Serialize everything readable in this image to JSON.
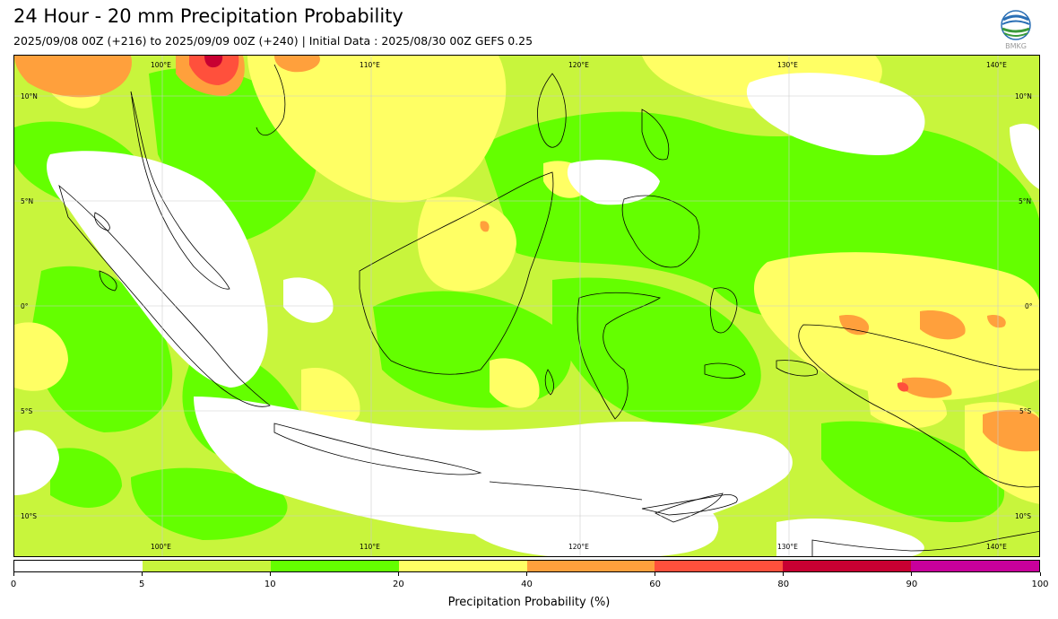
{
  "header": {
    "title": "24 Hour - 20 mm Precipitation Probability",
    "subtitle": "2025/09/08 00Z (+216) to 2025/09/09 00Z (+240) | Initial Data : 2025/08/30 00Z GEFS 0.25"
  },
  "logo": {
    "icon": "bmkg-logo-icon",
    "text": "BMKG"
  },
  "map": {
    "gridlines": {
      "longitudes_top": [
        "100°E",
        "110°E",
        "120°E",
        "130°E",
        "140°E"
      ],
      "longitudes_bottom": [
        "100°E",
        "110°E",
        "120°E",
        "130°E",
        "140°E"
      ],
      "latitudes_left": [
        "10°N",
        "5°N",
        "0°",
        "5°S",
        "10°S"
      ],
      "latitudes_right": [
        "10°N",
        "5°N",
        "0°",
        "5°S",
        "10°S"
      ]
    },
    "region": "Indonesia, approx 93°E–142°E, 12°N–12°S"
  },
  "colorbar": {
    "label": "Precipitation Probability (%)",
    "ticks": [
      "0",
      "5",
      "10",
      "20",
      "40",
      "60",
      "80",
      "90",
      "100"
    ],
    "colors": [
      "#ffffff",
      "#c8f53c",
      "#64ff00",
      "#ffff64",
      "#ffa03c",
      "#ff503c",
      "#c80032",
      "#c8009b"
    ]
  }
}
